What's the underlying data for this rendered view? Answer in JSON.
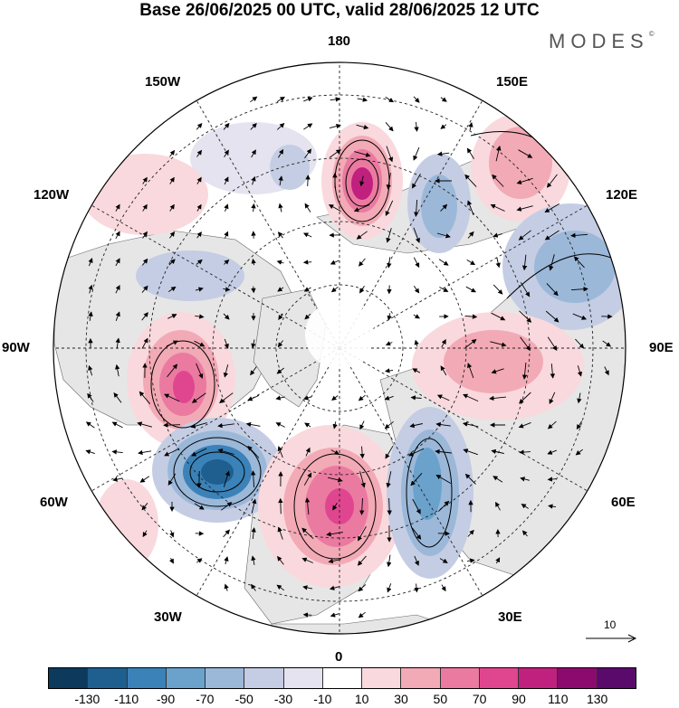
{
  "title": "Base 26/06/2025 00 UTC, valid 28/06/2025 12 UTC",
  "brand": "MODES",
  "brand_mark": "©",
  "longitude_labels": {
    "top": "180",
    "bottom": "0",
    "left": "90W",
    "right": "90E",
    "upper_left_1": "150W",
    "upper_left_2": "120W",
    "lower_left_1": "60W",
    "lower_left_2": "30W",
    "upper_right_1": "150E",
    "upper_right_2": "120E",
    "lower_right_1": "60E",
    "lower_right_2": "30E"
  },
  "reference_vector_label": "10",
  "colorbar": {
    "colors": [
      "#0d3a5c",
      "#1f5f8f",
      "#3b82b8",
      "#6aa2cc",
      "#9bb8d9",
      "#c4cde3",
      "#e4e3ef",
      "#ffffff",
      "#f9d9dd",
      "#f2aab6",
      "#eb7aa0",
      "#e0468f",
      "#c0207e",
      "#8c0a6e",
      "#5a0a6a"
    ],
    "tick_labels": [
      "-130",
      "-110",
      "-90",
      "-70",
      "-50",
      "-30",
      "-10",
      "10",
      "30",
      "50",
      "70",
      "90",
      "110",
      "130"
    ]
  },
  "colors": {
    "land_fill": "#e6e6e6",
    "positive_strong": "#d93d8e",
    "negative_strong": "#2e79b3"
  }
}
